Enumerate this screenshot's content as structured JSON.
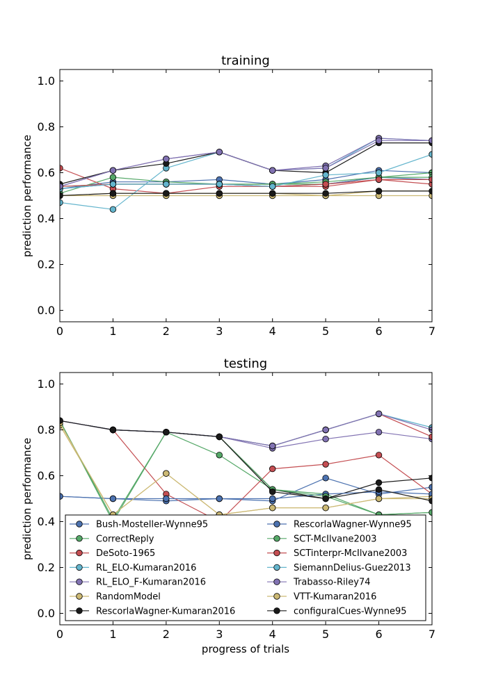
{
  "figure": {
    "xlabel": "progress of trials"
  },
  "series_styles": [
    {
      "name": "Bush-Mosteller-Wynne95",
      "color": "#4c72b0",
      "linestyle": "solid"
    },
    {
      "name": "CorrectReply",
      "color": "#55a868",
      "linestyle": "solid"
    },
    {
      "name": "DeSoto-1965",
      "color": "#c44e52",
      "linestyle": "solid"
    },
    {
      "name": "RL_ELO-Kumaran2016",
      "color": "#64b5cd",
      "linestyle": "solid"
    },
    {
      "name": "RL_ELO_F-Kumaran2016",
      "color": "#8172b2",
      "linestyle": "solid"
    },
    {
      "name": "RandomModel",
      "color": "#ccb974",
      "linestyle": "solid"
    },
    {
      "name": "RescorlaWagner-Kumaran2016",
      "color": "#1a1a1a",
      "linestyle": "solid"
    },
    {
      "name": "RescorlaWagner-Wynne95",
      "color": "#4c72b0",
      "linestyle": "solid"
    },
    {
      "name": "SCT-McIlvane2003",
      "color": "#55a868",
      "linestyle": "solid"
    },
    {
      "name": "SCTinterpr-McIlvane2003",
      "color": "#c44e52",
      "linestyle": "solid"
    },
    {
      "name": "SiemannDelius-Guez2013",
      "color": "#64b5cd",
      "linestyle": "solid"
    },
    {
      "name": "Trabasso-Riley74",
      "color": "#8172b2",
      "linestyle": "solid"
    },
    {
      "name": "VTT-Kumaran2016",
      "color": "#ccb974",
      "linestyle": "solid"
    },
    {
      "name": "configuralCues-Wynne95",
      "color": "#1a1a1a",
      "linestyle": "solid"
    }
  ],
  "chart_data": [
    {
      "type": "line",
      "title": "training",
      "xlabel": "",
      "ylabel": "prediction performance",
      "xlim": [
        0,
        7
      ],
      "ylim": [
        -0.05,
        1.05
      ],
      "xticks": [
        "0",
        "1",
        "2",
        "3",
        "4",
        "5",
        "6",
        "7"
      ],
      "yticks": [
        "0.0",
        "0.2",
        "0.4",
        "0.6",
        "0.8",
        "1.0"
      ],
      "grid": false,
      "x": [
        0,
        1,
        2,
        3,
        4,
        5,
        6,
        7
      ],
      "series": [
        {
          "name": "Bush-Mosteller-Wynne95",
          "values": [
            0.53,
            0.56,
            0.56,
            0.57,
            0.55,
            0.57,
            0.61,
            0.6
          ]
        },
        {
          "name": "CorrectReply",
          "values": [
            0.51,
            0.58,
            0.56,
            0.55,
            0.55,
            0.55,
            0.58,
            0.6
          ]
        },
        {
          "name": "DeSoto-1965",
          "values": [
            0.62,
            0.53,
            0.51,
            0.54,
            0.54,
            0.54,
            0.57,
            0.55
          ]
        },
        {
          "name": "RL_ELO-Kumaran2016",
          "values": [
            0.47,
            0.44,
            0.62,
            0.69,
            0.61,
            0.62,
            0.75,
            0.74
          ]
        },
        {
          "name": "RL_ELO_F-Kumaran2016",
          "values": [
            0.54,
            0.61,
            0.66,
            0.69,
            0.61,
            0.63,
            0.75,
            0.74
          ]
        },
        {
          "name": "RandomModel",
          "values": [
            0.5,
            0.5,
            0.5,
            0.5,
            0.5,
            0.5,
            0.5,
            0.5
          ]
        },
        {
          "name": "RescorlaWagner-Kumaran2016",
          "values": [
            0.55,
            0.61,
            0.64,
            0.69,
            0.61,
            0.6,
            0.73,
            0.73
          ]
        },
        {
          "name": "RescorlaWagner-Wynne95",
          "values": [
            0.53,
            0.55,
            0.55,
            0.55,
            0.54,
            0.55,
            0.58,
            0.57
          ]
        },
        {
          "name": "SCT-McIlvane2003",
          "values": [
            0.54,
            0.55,
            0.55,
            0.55,
            0.55,
            0.56,
            0.58,
            0.58
          ]
        },
        {
          "name": "SCTinterpr-McIlvane2003",
          "values": [
            0.54,
            0.55,
            0.55,
            0.55,
            0.54,
            0.55,
            0.57,
            0.57
          ]
        },
        {
          "name": "SiemannDelius-Guez2013",
          "values": [
            0.53,
            0.55,
            0.55,
            0.55,
            0.54,
            0.59,
            0.6,
            0.68
          ]
        },
        {
          "name": "Trabasso-Riley74",
          "values": [
            0.54,
            0.61,
            0.66,
            0.69,
            0.61,
            0.62,
            0.74,
            0.74
          ]
        },
        {
          "name": "VTT-Kumaran2016",
          "values": [
            0.5,
            0.51,
            0.51,
            0.51,
            0.51,
            0.5,
            0.52,
            0.52
          ]
        },
        {
          "name": "configuralCues-Wynne95",
          "values": [
            0.5,
            0.51,
            0.51,
            0.51,
            0.51,
            0.51,
            0.52,
            0.52
          ]
        }
      ]
    },
    {
      "type": "line",
      "title": "testing",
      "xlabel": "progress of trials",
      "ylabel": "prediction performance",
      "xlim": [
        0,
        7
      ],
      "ylim": [
        -0.05,
        1.05
      ],
      "xticks": [
        "0",
        "1",
        "2",
        "3",
        "4",
        "5",
        "6",
        "7"
      ],
      "yticks": [
        "0.0",
        "0.2",
        "0.4",
        "0.6",
        "0.8",
        "1.0"
      ],
      "grid": false,
      "legend_position": "lower-center",
      "x": [
        0,
        1,
        2,
        3,
        4,
        5,
        6,
        7
      ],
      "series": [
        {
          "name": "Bush-Mosteller-Wynne95",
          "values": [
            0.51,
            0.5,
            0.49,
            0.5,
            0.49,
            0.59,
            0.52,
            0.55
          ]
        },
        {
          "name": "CorrectReply",
          "values": [
            0.84,
            0.4,
            0.79,
            0.69,
            0.54,
            0.52,
            0.43,
            0.44
          ]
        },
        {
          "name": "DeSoto-1965",
          "values": [
            0.84,
            0.8,
            0.52,
            0.4,
            0.63,
            0.65,
            0.69,
            0.52
          ]
        },
        {
          "name": "RL_ELO-Kumaran2016",
          "values": [
            0.84,
            0.8,
            0.79,
            0.77,
            0.73,
            0.8,
            0.87,
            0.81
          ]
        },
        {
          "name": "RL_ELO_F-Kumaran2016",
          "values": [
            0.84,
            0.8,
            0.79,
            0.77,
            0.72,
            0.76,
            0.79,
            0.76
          ]
        },
        {
          "name": "RandomModel",
          "values": [
            0.82,
            0.43,
            0.61,
            0.43,
            0.46,
            0.46,
            0.5,
            0.51
          ]
        },
        {
          "name": "RescorlaWagner-Kumaran2016",
          "values": [
            0.84,
            0.8,
            0.79,
            0.77,
            0.54,
            0.5,
            0.57,
            0.59
          ]
        },
        {
          "name": "RescorlaWagner-Wynne95",
          "values": [
            0.51,
            0.5,
            0.5,
            0.5,
            0.5,
            0.52,
            0.53,
            0.52
          ]
        },
        {
          "name": "SCT-McIlvane2003",
          "values": [
            0.84,
            0.41,
            0.79,
            0.77,
            0.54,
            0.51,
            0.43,
            0.44
          ]
        },
        {
          "name": "SCTinterpr-McIlvane2003",
          "values": [
            0.84,
            0.8,
            0.79,
            0.77,
            0.73,
            0.8,
            0.87,
            0.77
          ]
        },
        {
          "name": "SiemannDelius-Guez2013",
          "values": [
            0.84,
            0.8,
            0.79,
            0.77,
            0.73,
            0.8,
            0.87,
            0.81
          ]
        },
        {
          "name": "Trabasso-Riley74",
          "values": [
            0.84,
            0.8,
            0.79,
            0.77,
            0.73,
            0.8,
            0.87,
            0.8
          ]
        },
        {
          "name": "VTT-Kumaran2016",
          "values": [
            0.83,
            0.43,
            0.61,
            0.43,
            0.46,
            0.46,
            0.5,
            0.5
          ]
        },
        {
          "name": "configuralCues-Wynne95",
          "values": [
            0.84,
            0.8,
            0.79,
            0.77,
            0.53,
            0.5,
            0.54,
            0.49
          ]
        }
      ]
    }
  ]
}
